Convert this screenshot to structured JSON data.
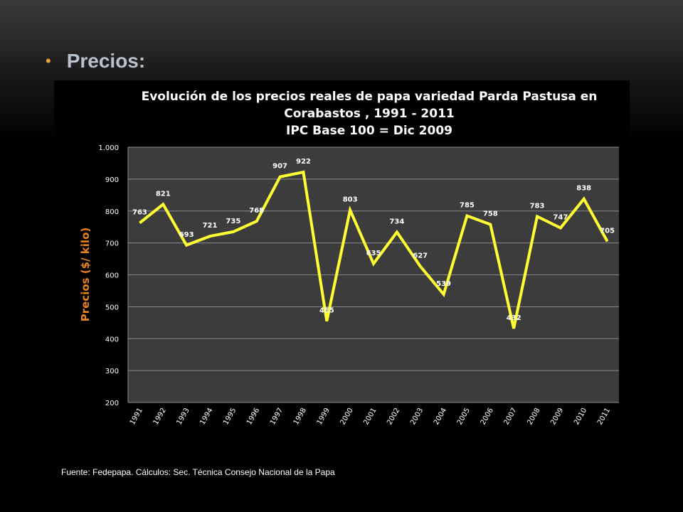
{
  "slide": {
    "bullet": "•",
    "heading": "Precios:",
    "source": "Fuente: Fedepapa.  Cálculos: Sec. Técnica Consejo Nacional de la Papa"
  },
  "colors": {
    "line": "#ffff33",
    "plot_bg": "#3c3c3c",
    "grid": "#8a8a8a",
    "ylabel": "#e8821e",
    "text": "#ffffff",
    "bullet": "#e8a33d",
    "heading": "#b9c2cc"
  },
  "chart_data": {
    "type": "line",
    "title_lines": [
      "Evolución de los precios reales de papa variedad Parda Pastusa en",
      "Corabastos , 1991 - 2011",
      "IPC Base 100 = Dic 2009"
    ],
    "xlabel": "",
    "ylabel": "Precios ($/ kilo)",
    "categories": [
      "1991",
      "1992",
      "1993",
      "1994",
      "1995",
      "1996",
      "1997",
      "1998",
      "1999",
      "2000",
      "2001",
      "2002",
      "2003",
      "2004",
      "2005",
      "2006",
      "2007",
      "2008",
      "2009",
      "2010",
      "2011"
    ],
    "series": [
      {
        "values": [
          763,
          821,
          693,
          721,
          735,
          768,
          907,
          922,
          455,
          803,
          635,
          734,
          627,
          539,
          785,
          758,
          432,
          783,
          747,
          838,
          705
        ]
      }
    ],
    "data_labels": [
      "763",
      "821",
      "693",
      "721",
      "735",
      "768",
      "907",
      "922",
      "455",
      "803",
      "635",
      "734",
      "627",
      "539",
      "785",
      "758",
      "432",
      "783",
      "747",
      "838",
      "705"
    ],
    "ylim": [
      200,
      1000
    ],
    "yticks": [
      200,
      300,
      400,
      500,
      600,
      700,
      800,
      900,
      1000
    ],
    "ytick_labels": [
      "200",
      "300",
      "400",
      "500",
      "600",
      "700",
      "800",
      "900",
      "1.000"
    ],
    "grid": true,
    "legend": "none"
  }
}
